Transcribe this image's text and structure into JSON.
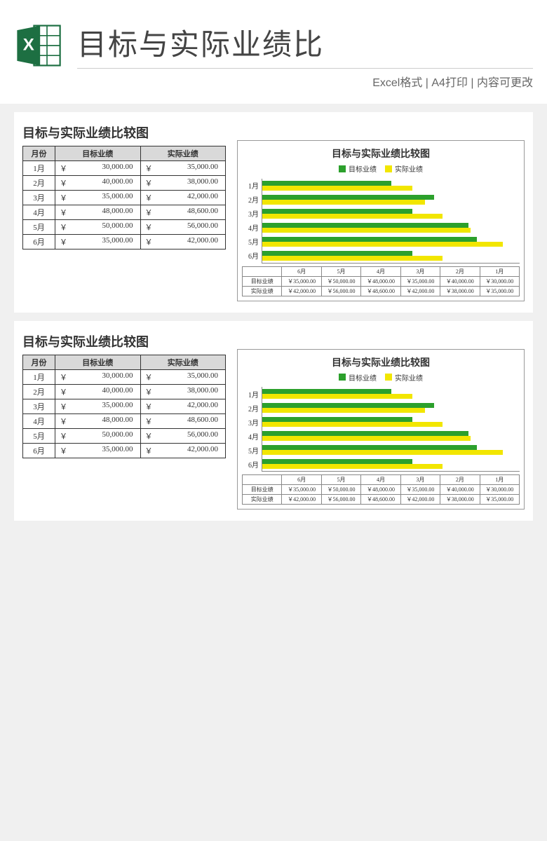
{
  "header": {
    "main_title": "目标与实际业绩比",
    "subtitle": "Excel格式 | A4打印 | 内容可更改"
  },
  "colors": {
    "target": "#2ca02c",
    "actual": "#f2e600",
    "header_bg": "#d9d9d9",
    "border": "#333333",
    "grid": "#d0d0d0"
  },
  "panel_title": "目标与实际业绩比较图",
  "table": {
    "columns": [
      "月份",
      "目标业绩",
      "实际业绩"
    ],
    "currency": "￥",
    "rows": [
      {
        "month": "1月",
        "target": "30,000.00",
        "actual": "35,000.00"
      },
      {
        "month": "2月",
        "target": "40,000.00",
        "actual": "38,000.00"
      },
      {
        "month": "3月",
        "target": "35,000.00",
        "actual": "42,000.00"
      },
      {
        "month": "4月",
        "target": "48,000.00",
        "actual": "48,600.00"
      },
      {
        "month": "5月",
        "target": "50,000.00",
        "actual": "56,000.00"
      },
      {
        "month": "6月",
        "target": "35,000.00",
        "actual": "42,000.00"
      }
    ]
  },
  "chart": {
    "title": "目标与实际业绩比较图",
    "legend": {
      "target": "目标业绩",
      "actual": "实际业绩"
    },
    "x_max": 60000,
    "y_categories": [
      "1月",
      "2月",
      "3月",
      "4月",
      "5月",
      "6月"
    ],
    "series": {
      "target": [
        30000,
        40000,
        35000,
        48000,
        50000,
        35000
      ],
      "actual": [
        35000,
        38000,
        42000,
        48600,
        56000,
        42000
      ]
    },
    "axis_table_order": [
      "6月",
      "5月",
      "4月",
      "3月",
      "2月",
      "1月"
    ],
    "axis_table": {
      "target_label": "目标业绩",
      "actual_label": "实际业绩",
      "target_vals": [
        "￥35,000.00",
        "￥50,000.00",
        "￥48,000.00",
        "￥35,000.00",
        "￥40,000.00",
        "￥30,000.00"
      ],
      "actual_vals": [
        "￥42,000.00",
        "￥56,000.00",
        "￥48,600.00",
        "￥42,000.00",
        "￥38,000.00",
        "￥35,000.00"
      ]
    }
  }
}
